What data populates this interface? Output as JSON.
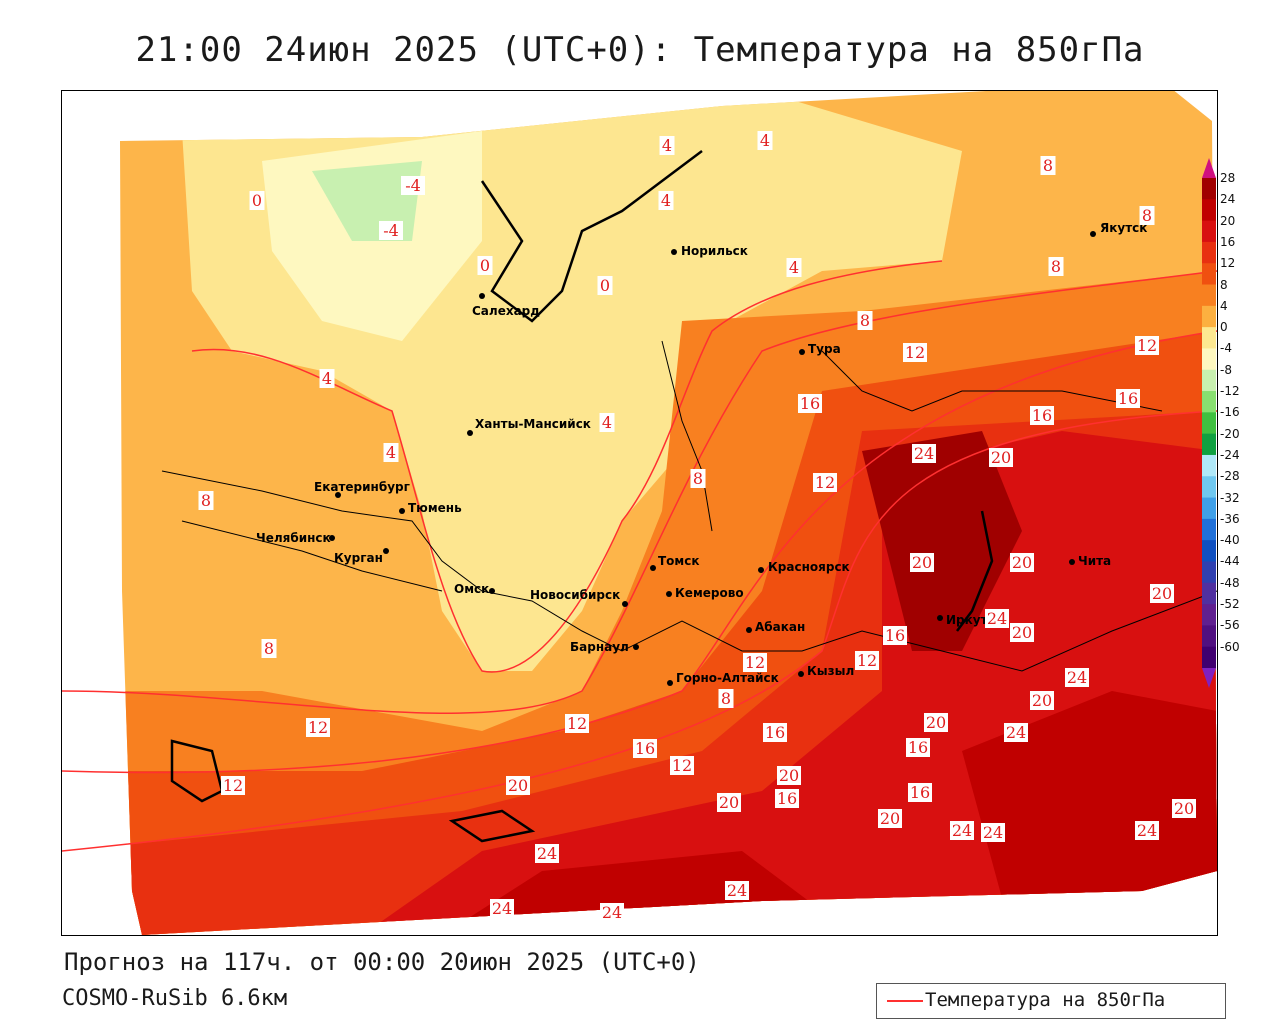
{
  "title": "21:00 24июн 2025 (UTC+0): Температура на 850гПа",
  "footer": {
    "forecast_line": "Прогноз на 117ч. от 00:00 20июн 2025 (UTC+0)",
    "model_line": "COSMO-RuSib 6.6км"
  },
  "legend": {
    "line_label": "Температура на 850гПа",
    "line_color": "#ff3030"
  },
  "colorbar": {
    "labels": [
      "28",
      "24",
      "20",
      "16",
      "12",
      "8",
      "4",
      "0",
      "-4",
      "-8",
      "-12",
      "-16",
      "-20",
      "-24",
      "-28",
      "-32",
      "-36",
      "-40",
      "-44",
      "-48",
      "-52",
      "-56",
      "-60"
    ],
    "colors": [
      "#a00000",
      "#c00000",
      "#d81010",
      "#e83010",
      "#f05010",
      "#f88020",
      "#fcb040",
      "#fde890",
      "#fef8c0",
      "#c8f0b0",
      "#88e070",
      "#40c040",
      "#10a040",
      "#b0e8f8",
      "#70c8f0",
      "#40a0e8",
      "#2070d8",
      "#1050c0",
      "#3040b0",
      "#5030a0",
      "#602090",
      "#501080",
      "#400070"
    ],
    "top_arrow_color": "#d01080",
    "bottom_arrow_color": "#8020c0"
  },
  "cities": [
    {
      "name": "Норильск"
    },
    {
      "name": "Якутск"
    },
    {
      "name": "Салехард"
    },
    {
      "name": "Тура"
    },
    {
      "name": "Ханты-Мансийск"
    },
    {
      "name": "Екатеринбург"
    },
    {
      "name": "Тюмень"
    },
    {
      "name": "Челябинск"
    },
    {
      "name": "Курган"
    },
    {
      "name": "Омск"
    },
    {
      "name": "Новосибирск"
    },
    {
      "name": "Томск"
    },
    {
      "name": "Кемерово"
    },
    {
      "name": "Красноярск"
    },
    {
      "name": "Абакан"
    },
    {
      "name": "Барнаул"
    },
    {
      "name": "Горно-Алтайск"
    },
    {
      "name": "Кызыл"
    },
    {
      "name": "Иркутск"
    },
    {
      "name": "Чита"
    }
  ],
  "isotherm_labels": [
    "-4",
    "-4",
    "0",
    "0",
    "0",
    "4",
    "4",
    "4",
    "4",
    "4",
    "4",
    "4",
    "8",
    "8",
    "8",
    "8",
    "8",
    "8",
    "8",
    "8",
    "12",
    "12",
    "12",
    "12",
    "12",
    "12",
    "12",
    "12",
    "12",
    "16",
    "16",
    "16",
    "16",
    "16",
    "16",
    "16",
    "16",
    "16",
    "20",
    "20",
    "20",
    "20",
    "20",
    "20",
    "20",
    "20",
    "20",
    "20",
    "20",
    "20",
    "24",
    "24",
    "24",
    "24",
    "24",
    "24",
    "24",
    "24",
    "24",
    "24",
    "24"
  ]
}
